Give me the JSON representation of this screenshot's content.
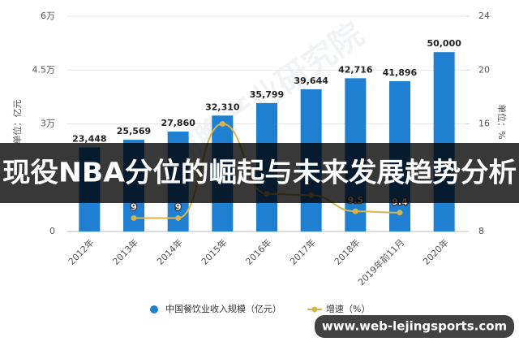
{
  "chart_data": {
    "type": "bar-line",
    "categories": [
      "2012年",
      "2013年",
      "2014年",
      "2015年",
      "2016年",
      "2017年",
      "2018年",
      "2019年前11月",
      "2020年"
    ],
    "series": [
      {
        "name": "中国餐饮业收入规模（亿元）",
        "color": "#1f7fd0",
        "type": "bar",
        "values": [
          23448,
          25569,
          27860,
          32310,
          35799,
          39644,
          42716,
          41896,
          50000
        ],
        "value_labels": [
          "23,448",
          "25,569",
          "27,860",
          "32,310",
          "35,799",
          "39,644",
          "42,716",
          "41,896",
          "50,000"
        ]
      },
      {
        "name": "增速（%）",
        "color": "#d8b44a",
        "type": "line",
        "axis": "y2",
        "values": [
          null,
          9,
          9,
          16,
          10.8,
          10.7,
          9.5,
          9.4,
          null
        ],
        "value_labels": [
          null,
          "9",
          "9",
          null,
          null,
          null,
          "9.5",
          "9.4",
          null
        ]
      }
    ],
    "ylim": [
      0,
      60000
    ],
    "yticks": [
      0,
      {
        "value": 30000,
        "label": "3万"
      },
      {
        "value": 45000,
        "label": "4.5万"
      },
      {
        "value": 60000,
        "label": "6万"
      }
    ],
    "y2lim": [
      8,
      24
    ],
    "y2ticks": [
      8,
      16,
      20,
      24
    ],
    "ylabel": "单位：亿元",
    "y2label": "单位：%",
    "watermark": "前瞻产业研究院",
    "grid": true
  },
  "overlay": {
    "headline": "现役NBA分位的崛起与未来发展趋势分析",
    "url": "www.web-lejingsports.com"
  }
}
